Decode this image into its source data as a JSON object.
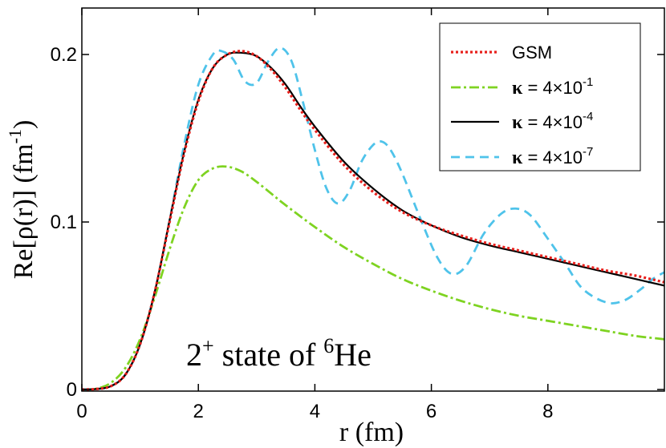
{
  "chart_data": {
    "type": "line",
    "xlabel": "r (fm)",
    "ylabel": "Re[ρ(r)]  (fm⁻¹)",
    "ylabel_parts": {
      "main": "Re[ρ(r)]  (fm",
      "sup": "-1",
      "close": ")"
    },
    "xlim": [
      0,
      10
    ],
    "ylim": [
      0,
      0.23
    ],
    "xticks": [
      0,
      2,
      4,
      6,
      8
    ],
    "xtick_labels": [
      "0",
      "2",
      "4",
      "6",
      "8"
    ],
    "yticks": [
      0,
      0.1,
      0.2
    ],
    "ytick_labels": [
      "0",
      "0.1",
      "0.2"
    ],
    "annotation": {
      "sup1": "2",
      "sup2": "+",
      "mid": " state of ",
      "sup3": "6",
      "tail": "He"
    },
    "legend_position": "top-right",
    "series": [
      {
        "name": "GSM",
        "legend": {
          "text": "GSM"
        },
        "color": "#e8201c",
        "style": "dotted",
        "x": [
          0,
          0.25,
          0.5,
          0.75,
          1.0,
          1.25,
          1.5,
          1.75,
          2.0,
          2.25,
          2.5,
          2.75,
          3.0,
          3.25,
          3.5,
          3.75,
          4.0,
          4.5,
          5.0,
          5.5,
          6.0,
          6.5,
          7.0,
          7.5,
          8.0,
          8.5,
          9.0,
          9.5,
          10.0
        ],
        "y": [
          0,
          0.0003,
          0.002,
          0.009,
          0.027,
          0.058,
          0.099,
          0.14,
          0.172,
          0.192,
          0.2,
          0.202,
          0.199,
          0.191,
          0.18,
          0.167,
          0.155,
          0.134,
          0.118,
          0.106,
          0.098,
          0.092,
          0.087,
          0.083,
          0.079,
          0.075,
          0.071,
          0.068,
          0.064
        ]
      },
      {
        "name": "κ = 4×10-1",
        "legend": {
          "text": "κ = 4×10",
          "sup": "-1"
        },
        "color": "#7ed321",
        "style": "dashdot",
        "x": [
          0,
          0.25,
          0.5,
          0.75,
          1.0,
          1.25,
          1.5,
          1.75,
          2.0,
          2.25,
          2.5,
          2.75,
          3.0,
          3.25,
          3.5,
          4.0,
          4.5,
          5.0,
          5.5,
          6.0,
          6.5,
          7.0,
          7.5,
          8.0,
          8.5,
          9.0,
          9.5,
          10.0
        ],
        "y": [
          0,
          0.0005,
          0.004,
          0.013,
          0.03,
          0.055,
          0.083,
          0.108,
          0.125,
          0.132,
          0.133,
          0.13,
          0.124,
          0.117,
          0.11,
          0.097,
          0.085,
          0.075,
          0.066,
          0.059,
          0.053,
          0.048,
          0.044,
          0.041,
          0.038,
          0.035,
          0.032,
          0.03
        ]
      },
      {
        "name": "κ = 4×10-4",
        "legend": {
          "text": "κ = 4×10",
          "sup": "-4"
        },
        "color": "#000000",
        "style": "solid",
        "x": [
          0,
          0.25,
          0.5,
          0.75,
          1.0,
          1.25,
          1.5,
          1.75,
          2.0,
          2.25,
          2.5,
          2.75,
          3.0,
          3.25,
          3.5,
          3.75,
          4.0,
          4.5,
          5.0,
          5.5,
          6.0,
          6.5,
          7.0,
          7.5,
          8.0,
          8.5,
          9.0,
          9.5,
          10.0
        ],
        "y": [
          0,
          0.0003,
          0.002,
          0.009,
          0.027,
          0.058,
          0.1,
          0.141,
          0.173,
          0.192,
          0.2,
          0.201,
          0.199,
          0.192,
          0.182,
          0.169,
          0.157,
          0.136,
          0.12,
          0.107,
          0.098,
          0.091,
          0.086,
          0.082,
          0.078,
          0.074,
          0.07,
          0.066,
          0.062
        ]
      },
      {
        "name": "κ = 4×10-7",
        "legend": {
          "text": "κ = 4×10",
          "sup": "-7"
        },
        "color": "#4fc3ea",
        "style": "dashed",
        "x": [
          0,
          0.25,
          0.5,
          0.75,
          1.0,
          1.25,
          1.5,
          1.75,
          2.0,
          2.25,
          2.4,
          2.6,
          2.8,
          3.0,
          3.2,
          3.4,
          3.6,
          3.8,
          4.0,
          4.2,
          4.4,
          4.6,
          4.8,
          5.0,
          5.15,
          5.3,
          5.5,
          5.8,
          6.1,
          6.35,
          6.6,
          6.9,
          7.2,
          7.45,
          7.7,
          8.0,
          8.3,
          8.6,
          9.0,
          9.3,
          9.6,
          9.8,
          10.0
        ],
        "y": [
          0,
          0.0003,
          0.002,
          0.009,
          0.027,
          0.058,
          0.1,
          0.145,
          0.182,
          0.2,
          0.202,
          0.197,
          0.184,
          0.183,
          0.196,
          0.204,
          0.196,
          0.171,
          0.143,
          0.12,
          0.111,
          0.119,
          0.136,
          0.146,
          0.148,
          0.143,
          0.129,
          0.103,
          0.079,
          0.069,
          0.074,
          0.093,
          0.105,
          0.108,
          0.104,
          0.09,
          0.075,
          0.06,
          0.052,
          0.053,
          0.06,
          0.066,
          0.07
        ]
      }
    ]
  }
}
